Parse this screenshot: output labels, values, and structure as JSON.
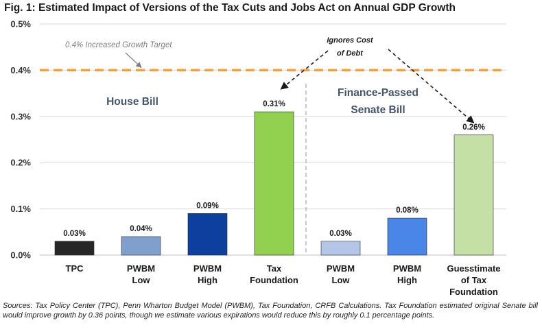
{
  "chart_data": {
    "type": "bar",
    "title": "Fig. 1: Estimated Impact of Versions of the Tax Cuts and Jobs Act on Annual GDP Growth",
    "categories": [
      [
        "TPC"
      ],
      [
        "PWBM",
        "Low"
      ],
      [
        "PWBM",
        "High"
      ],
      [
        "Tax",
        "Foundation"
      ],
      [
        "PWBM",
        "Low"
      ],
      [
        "PWBM",
        "High"
      ],
      [
        "Guesstimate",
        "of Tax",
        "Foundation"
      ]
    ],
    "values": [
      0.03,
      0.04,
      0.09,
      0.31,
      0.03,
      0.08,
      0.26
    ],
    "data_labels": [
      "0.03%",
      "0.04%",
      "0.09%",
      "0.31%",
      "0.03%",
      "0.08%",
      "0.26%"
    ],
    "bar_colors": [
      "#262626",
      "#7f9fcc",
      "#0c3f9e",
      "#92d050",
      "#b3c6e7",
      "#4a86e8",
      "#c5e0a5"
    ],
    "ylim": [
      0,
      0.5
    ],
    "yticks": [
      0,
      0.1,
      0.2,
      0.3,
      0.4,
      0.5
    ],
    "ytick_labels": [
      "0.0%",
      "0.1%",
      "0.2%",
      "0.3%",
      "0.4%",
      "0.5%"
    ],
    "xlabel": "",
    "ylabel": "",
    "grid": true,
    "reference_line": {
      "value": 0.4,
      "label": "0.4% Increased Growth Target",
      "color": "#f4a13a"
    },
    "groups": [
      {
        "label": [
          "House Bill"
        ],
        "bars": [
          0,
          1,
          2,
          3
        ]
      },
      {
        "label": [
          "Finance-Passed",
          "Senate Bill"
        ],
        "bars": [
          4,
          5,
          6
        ]
      }
    ],
    "callout": {
      "text": [
        "Ignores Cost",
        "of Debt"
      ],
      "targets": [
        3,
        6
      ]
    }
  },
  "source_note": "Sources: Tax Policy Center (TPC), Penn Wharton Budget Model (PWBM), Tax Foundation, CRFB Calculations. Tax Foundation estimated original Senate bill would improve growth by 0.36 points, though we estimate various expirations would reduce this by roughly 0.1 percentage points."
}
